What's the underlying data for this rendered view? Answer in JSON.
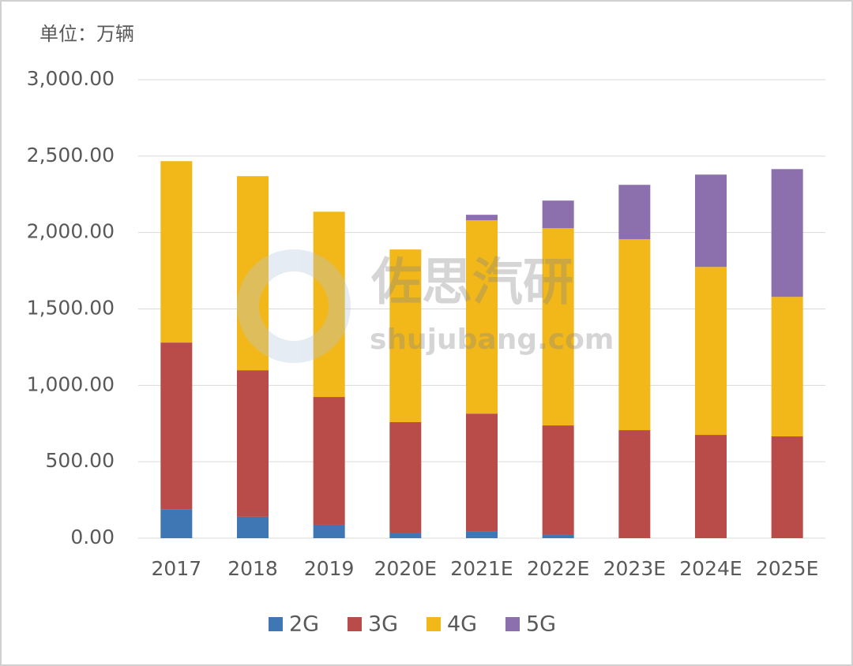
{
  "chart_data": {
    "type": "stacked_bar",
    "unit_label": "单位：万辆",
    "watermark": {
      "title": "佐思汽研",
      "url": "shujubang.com"
    },
    "categories": [
      "2017",
      "2018",
      "2019",
      "2020E",
      "2021E",
      "2022E",
      "2023E",
      "2024E",
      "2025E"
    ],
    "series": [
      {
        "name": "2G",
        "color": "#3f76b4",
        "values": [
          190,
          140,
          88,
          36,
          46,
          21,
          0,
          0,
          0
        ]
      },
      {
        "name": "3G",
        "color": "#b94b48",
        "values": [
          1090,
          959,
          836,
          723,
          769,
          717,
          707,
          676,
          666
        ]
      },
      {
        "name": "4G",
        "color": "#f2b718",
        "values": [
          1187,
          1270,
          1212,
          1130,
          1265,
          1290,
          1249,
          1099,
          913
        ]
      },
      {
        "name": "5G",
        "color": "#8b70ad",
        "values": [
          0,
          0,
          0,
          0,
          36,
          181,
          356,
          604,
          836
        ]
      }
    ],
    "ylim": [
      0,
      3000
    ],
    "yticks": [
      {
        "value": 0,
        "label": "0.00"
      },
      {
        "value": 500,
        "label": "500.00"
      },
      {
        "value": 1000,
        "label": "1,000.00"
      },
      {
        "value": 1500,
        "label": "1,500.00"
      },
      {
        "value": 2000,
        "label": "2,000.00"
      },
      {
        "value": 2500,
        "label": "2,500.00"
      },
      {
        "value": 3000,
        "label": "3,000.00"
      }
    ],
    "grid": true,
    "legend": "bottom"
  }
}
